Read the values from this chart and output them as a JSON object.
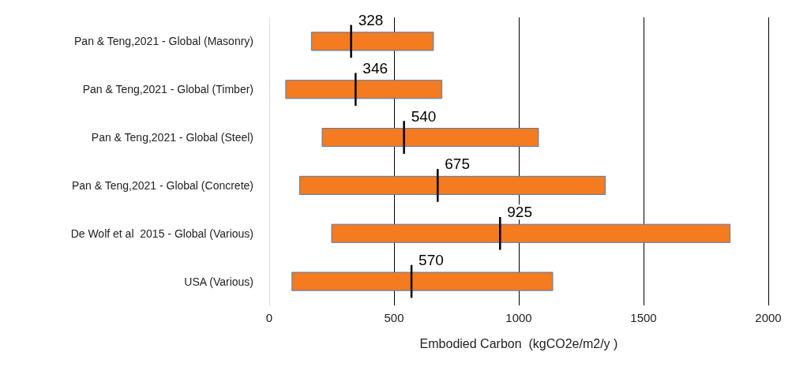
{
  "chart_data": {
    "type": "box",
    "orientation": "horizontal",
    "xlabel": "Embodied Carbon  (kgCO2e/m2/y )",
    "categories": [
      "Pan & Teng,2021 - Global (Masonry)",
      "Pan & Teng,2021 - Global (Timber)",
      "Pan & Teng,2021 - Global (Steel)",
      "Pan & Teng,2021 - Global (Concrete)",
      "De Wolf et al  2015 - Global (Various)",
      "USA (Various)"
    ],
    "xlim": [
      0,
      2000
    ],
    "xticks": [
      0,
      500,
      1000,
      1500,
      2000
    ],
    "grid": "x",
    "series": [
      {
        "color": "#f47b20",
        "boxes": [
          {
            "low": 169,
            "q1": 169,
            "median": 328,
            "q3": 658,
            "high": 658
          },
          {
            "low": 66,
            "q1": 66,
            "median": 346,
            "q3": 692,
            "high": 692
          },
          {
            "low": 212,
            "q1": 212,
            "median": 540,
            "q3": 1079,
            "high": 1079
          },
          {
            "low": 122,
            "q1": 122,
            "median": 675,
            "q3": 1347,
            "high": 1347
          },
          {
            "low": 250,
            "q1": 250,
            "median": 925,
            "q3": 1847,
            "high": 1847
          },
          {
            "low": 91,
            "q1": 91,
            "median": 570,
            "q3": 1136,
            "high": 1136
          }
        ]
      }
    ],
    "annotations": [
      {
        "text": "328",
        "x": 328,
        "y": "Pan & Teng,2021 - Global (Masonry)"
      },
      {
        "text": "346",
        "x": 346,
        "y": "Pan & Teng,2021 - Global (Timber)"
      },
      {
        "text": "540",
        "x": 540,
        "y": "Pan & Teng,2021 - Global (Steel)"
      },
      {
        "text": "675",
        "x": 675,
        "y": "Pan & Teng,2021 - Global (Concrete)"
      },
      {
        "text": "925",
        "x": 925,
        "y": "De Wolf et al  2015 - Global (Various)"
      },
      {
        "text": "570",
        "x": 570,
        "y": "USA (Various)"
      }
    ]
  }
}
